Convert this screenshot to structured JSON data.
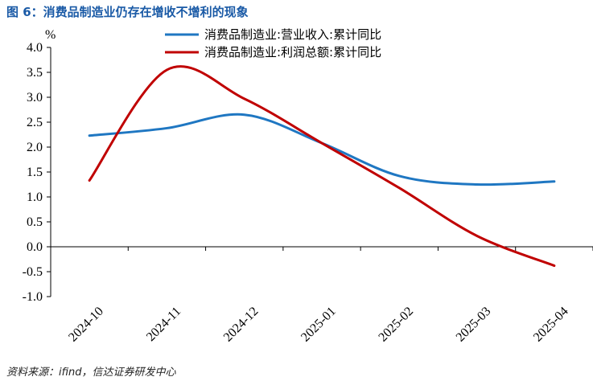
{
  "figure": {
    "title": "图 6：消费品制造业仍存在增收不增利的现象",
    "source": "资料来源：ifind，信达证券研发中心"
  },
  "chart_data": {
    "type": "line",
    "unit_label": "%",
    "categories": [
      "2024-10",
      "2024-11",
      "2024-12",
      "2025-01",
      "2025-02",
      "2025-03",
      "2025-04"
    ],
    "ylim": [
      -1.0,
      4.0
    ],
    "yticks": [
      "4.0",
      "3.5",
      "3.0",
      "2.5",
      "2.0",
      "1.5",
      "1.0",
      "0.5",
      "0.0",
      "-0.5",
      "-1.0"
    ],
    "legend_position": "top-center",
    "grid": false,
    "series": [
      {
        "name": "消费品制造业:营业收入:累计同比",
        "color": "#1f77c2",
        "values": [
          2.23,
          2.38,
          2.65,
          2.08,
          1.42,
          1.25,
          1.31
        ]
      },
      {
        "name": "消费品制造业:利润总额:累计同比",
        "color": "#c00000",
        "values": [
          1.33,
          3.55,
          2.97,
          2.08,
          1.18,
          0.22,
          -0.38
        ]
      }
    ]
  }
}
